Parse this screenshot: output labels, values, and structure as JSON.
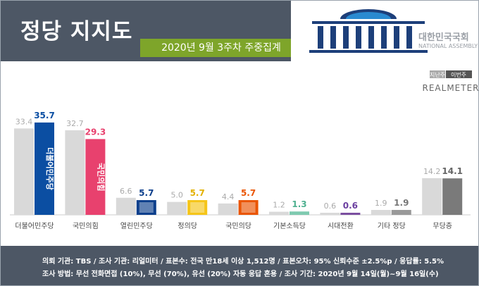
{
  "header": {
    "title": "정당 지지도",
    "subtitle": "2020년 9월 3주차 주중집계",
    "assembly_kr": "대한민국국회",
    "assembly_en": "NATIONAL ASSEMBLY"
  },
  "legend": {
    "prev_label": "지난주",
    "curr_label": "이번주",
    "brand": "REALMETER"
  },
  "chart_data": {
    "type": "bar",
    "categories": [
      "더불어민주당",
      "국민의힘",
      "열린민주당",
      "정의당",
      "국민의당",
      "기본소득당",
      "시대전환",
      "기타 정당",
      "무당층"
    ],
    "series": [
      {
        "name": "지난주",
        "values": [
          33.4,
          32.7,
          6.6,
          5.0,
          4.4,
          1.2,
          0.6,
          1.9,
          14.2
        ],
        "value_labels": [
          "33.4",
          "32.7",
          "6.6",
          "5.0",
          "4.4",
          "1.2",
          "0.6",
          "1.9",
          "14.2"
        ]
      },
      {
        "name": "이번주",
        "values": [
          35.7,
          29.3,
          5.7,
          5.7,
          5.7,
          1.3,
          0.6,
          1.9,
          14.1
        ],
        "value_labels": [
          "35.7",
          "29.3",
          "5.7",
          "5.7",
          "5.7",
          "1.3",
          "0.6",
          "1.9",
          "14.1"
        ]
      }
    ],
    "colors_current": [
      "#0b4ea2",
      "#e8416e",
      "#0d3f8c",
      "#f5c518",
      "#ea5504",
      "#7fcab0",
      "#7b4fa0",
      "#999999",
      "#7a7a7a"
    ],
    "label_colors_current": [
      "#0b4ea2",
      "#e8416e",
      "#0d3f8c",
      "#e3b100",
      "#ea5504",
      "#4fb090",
      "#6b3fa0",
      "#777777",
      "#666666"
    ],
    "color_previous": "#d9d9d9",
    "bar_texts": [
      "더불어민주당",
      "국민의힘"
    ],
    "ylim": [
      0,
      40
    ],
    "grid": false
  },
  "footer": {
    "line1": "의뢰 기관: TBS / 조사 기관: 리얼미터 / 표본수: 전국 만18세 이상 1,512명 / 표본오차: 95% 신뢰수준 ±2.5%p / 응답률: 5.5%",
    "line2": "조사 방법: 무선 전화면접 (10%), 무선 (70%), 유선 (20%) 자동 응답 혼용 / 조사 기간: 2020년 9월 14일(월)~9월 16일(수)"
  }
}
